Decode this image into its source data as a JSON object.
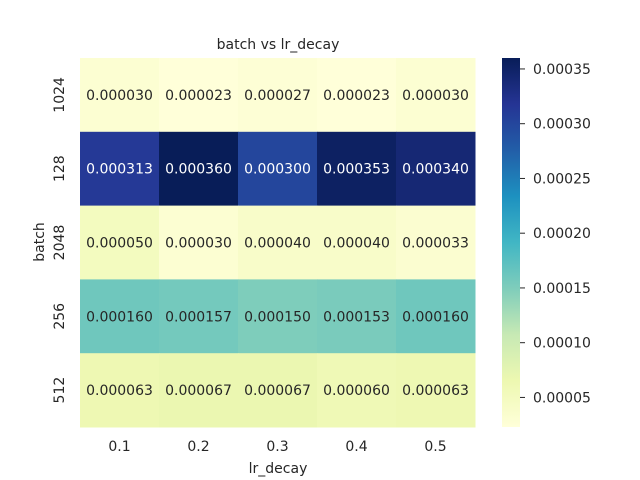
{
  "chart_data": {
    "type": "heatmap",
    "title": "batch vs lr_decay",
    "xlabel": "lr_decay",
    "ylabel": "batch",
    "x_categories": [
      "0.1",
      "0.2",
      "0.3",
      "0.4",
      "0.5"
    ],
    "y_categories": [
      "1024",
      "128",
      "2048",
      "256",
      "512"
    ],
    "values": [
      [
        3e-05,
        2.3e-05,
        2.7e-05,
        2.3e-05,
        3e-05
      ],
      [
        0.000313,
        0.00036,
        0.0003,
        0.000353,
        0.00034
      ],
      [
        5e-05,
        3e-05,
        4e-05,
        4e-05,
        3.3e-05
      ],
      [
        0.00016,
        0.000157,
        0.00015,
        0.000153,
        0.00016
      ],
      [
        6.3e-05,
        6.7e-05,
        6.7e-05,
        6e-05,
        6.3e-05
      ]
    ],
    "cell_labels": [
      [
        "0.000030",
        "0.000023",
        "0.000027",
        "0.000023",
        "0.000030"
      ],
      [
        "0.000313",
        "0.000360",
        "0.000300",
        "0.000353",
        "0.000340"
      ],
      [
        "0.000050",
        "0.000030",
        "0.000040",
        "0.000040",
        "0.000033"
      ],
      [
        "0.000160",
        "0.000157",
        "0.000150",
        "0.000153",
        "0.000160"
      ],
      [
        "0.000063",
        "0.000067",
        "0.000067",
        "0.000060",
        "0.000063"
      ]
    ],
    "colorbar": {
      "colormap": "YlGnBu",
      "vmin": 2.3e-05,
      "vmax": 0.00036,
      "ticks": [
        5e-05,
        0.0001,
        0.00015,
        0.0002,
        0.00025,
        0.0003,
        0.00035
      ],
      "tick_labels": [
        "0.00005",
        "0.00010",
        "0.00015",
        "0.00020",
        "0.00025",
        "0.00030",
        "0.00035"
      ]
    },
    "grid": false,
    "legend": "colorbar-right"
  }
}
